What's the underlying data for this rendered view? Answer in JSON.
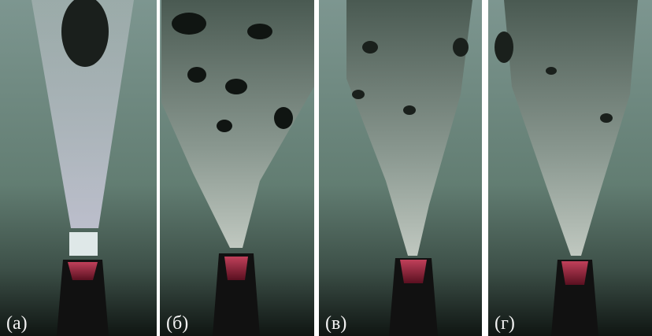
{
  "panels": [
    {
      "label": "(а)"
    },
    {
      "label": "(б)"
    },
    {
      "label": "(в)"
    },
    {
      "label": "(г)"
    }
  ]
}
